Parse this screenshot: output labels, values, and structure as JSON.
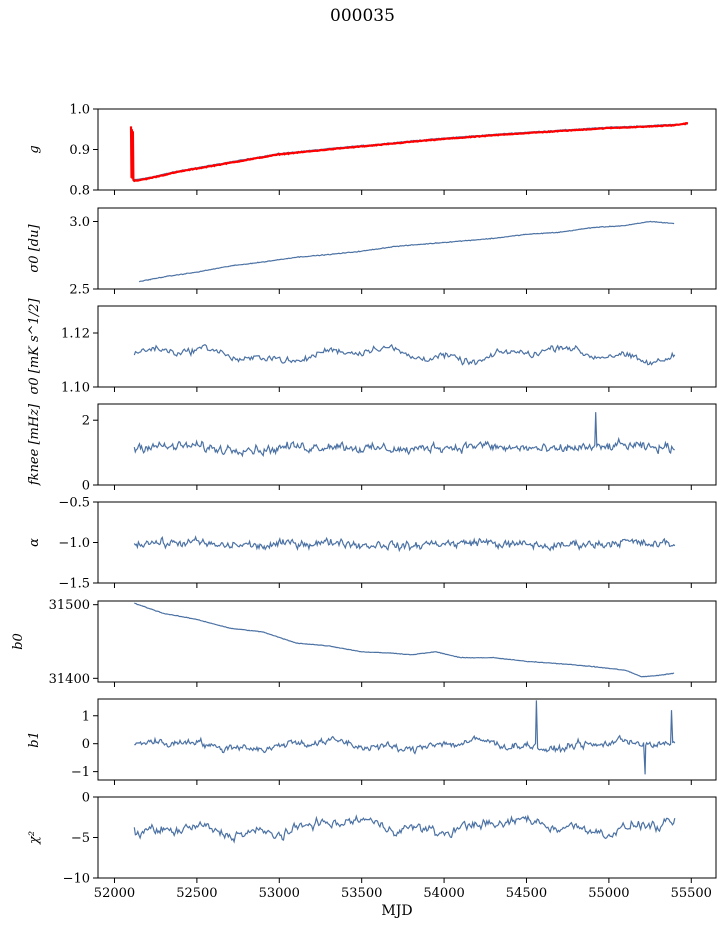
{
  "figure": {
    "title": "000035",
    "shared_xlabel": "MJD"
  },
  "colors": {
    "series": "#4c72a4",
    "overlay": "#ff0000",
    "axis": "#000000"
  },
  "chart_data": [
    {
      "type": "line",
      "ylabel": "g",
      "ylim": [
        0.8,
        1.0
      ],
      "yticks": [
        0.8,
        0.9,
        1.0
      ],
      "ytick_labels": [
        "0.8",
        "0.9",
        "1.0"
      ],
      "xlim": [
        51900,
        55650
      ],
      "series": [
        {
          "color": "#4c72a4",
          "style": "trend",
          "points": [
            [
              52120,
              0.825
            ],
            [
              52200,
              0.83
            ],
            [
              52400,
              0.848
            ],
            [
              52600,
              0.862
            ],
            [
              52800,
              0.876
            ],
            [
              53000,
              0.89
            ],
            [
              53200,
              0.898
            ],
            [
              53400,
              0.906
            ],
            [
              53600,
              0.913
            ],
            [
              53800,
              0.921
            ],
            [
              54000,
              0.928
            ],
            [
              54200,
              0.934
            ],
            [
              54400,
              0.94
            ],
            [
              54600,
              0.945
            ],
            [
              54800,
              0.95
            ],
            [
              55000,
              0.955
            ],
            [
              55200,
              0.958
            ],
            [
              55400,
              0.962
            ],
            [
              55480,
              0.963
            ]
          ],
          "noise": 0.0015
        },
        {
          "color": "#ff0000",
          "style": "trend",
          "points": [
            [
              52100,
              0.957
            ],
            [
              52103,
              0.83
            ],
            [
              52106,
              0.95
            ],
            [
              52109,
              0.828
            ],
            [
              52112,
              0.945
            ],
            [
              52115,
              0.825
            ],
            [
              52120,
              0.822
            ],
            [
              52200,
              0.828
            ],
            [
              52400,
              0.846
            ],
            [
              52600,
              0.86
            ],
            [
              52800,
              0.874
            ],
            [
              53000,
              0.888
            ],
            [
              53200,
              0.896
            ],
            [
              53400,
              0.904
            ],
            [
              53600,
              0.911
            ],
            [
              53800,
              0.919
            ],
            [
              54000,
              0.926
            ],
            [
              54200,
              0.932
            ],
            [
              54400,
              0.938
            ],
            [
              54600,
              0.943
            ],
            [
              54800,
              0.948
            ],
            [
              55000,
              0.953
            ],
            [
              55200,
              0.956
            ],
            [
              55400,
              0.96
            ],
            [
              55480,
              0.965
            ]
          ],
          "noise": 0.0015
        }
      ]
    },
    {
      "type": "line",
      "ylabel": "σ0 [du]",
      "ylim": [
        2.5,
        3.1
      ],
      "yticks": [
        2.5,
        3.0
      ],
      "ytick_labels": [
        "2.5",
        "3.0"
      ],
      "xlim": [
        51900,
        55650
      ],
      "series": [
        {
          "color": "#4c72a4",
          "style": "trend",
          "points": [
            [
              52150,
              2.555
            ],
            [
              52300,
              2.59
            ],
            [
              52500,
              2.625
            ],
            [
              52700,
              2.67
            ],
            [
              52900,
              2.7
            ],
            [
              53100,
              2.735
            ],
            [
              53300,
              2.755
            ],
            [
              53500,
              2.78
            ],
            [
              53700,
              2.815
            ],
            [
              53900,
              2.835
            ],
            [
              54100,
              2.855
            ],
            [
              54300,
              2.875
            ],
            [
              54500,
              2.905
            ],
            [
              54700,
              2.92
            ],
            [
              54900,
              2.955
            ],
            [
              55100,
              2.97
            ],
            [
              55250,
              3.0
            ],
            [
              55400,
              2.985
            ]
          ],
          "noise": 0.004
        }
      ]
    },
    {
      "type": "line",
      "ylabel": "σ0 [mK s^1/2]",
      "ylim": [
        1.1,
        1.13
      ],
      "yticks": [
        1.1,
        1.12
      ],
      "ytick_labels": [
        "1.10",
        "1.12"
      ],
      "xlim": [
        51900,
        55650
      ],
      "series": [
        {
          "color": "#4c72a4",
          "style": "noise",
          "n": 420,
          "x0": 52120,
          "x1": 55400,
          "mean": 1.112,
          "amp": 0.002,
          "wave": 0.002,
          "min": 1.106,
          "max": 1.118
        }
      ]
    },
    {
      "type": "line",
      "ylabel": "fknee [mHz]",
      "ylim": [
        0,
        2.5
      ],
      "yticks": [
        0,
        2
      ],
      "ytick_labels": [
        "0",
        "2"
      ],
      "xlim": [
        51900,
        55650
      ],
      "series": [
        {
          "color": "#4c72a4",
          "style": "noise",
          "n": 520,
          "x0": 52120,
          "x1": 55400,
          "mean": 1.15,
          "amp": 0.22,
          "wave": 0.05,
          "min": 0.7,
          "max": 1.65,
          "spikes": [
            [
              54920,
              2.25
            ]
          ]
        }
      ]
    },
    {
      "type": "line",
      "ylabel": "α",
      "ylim": [
        -1.5,
        -0.5
      ],
      "yticks": [
        -1.5,
        -1.0,
        -0.5
      ],
      "ytick_labels": [
        "−1.5",
        "−1.0",
        "−0.5"
      ],
      "xlim": [
        51900,
        55650
      ],
      "series": [
        {
          "color": "#4c72a4",
          "style": "noise",
          "n": 520,
          "x0": 52120,
          "x1": 55400,
          "mean": -1.02,
          "amp": 0.08,
          "wave": 0.02,
          "min": -1.38,
          "max": -0.82
        }
      ]
    },
    {
      "type": "line",
      "ylabel": "b0",
      "ylim": [
        31395,
        31505
      ],
      "yticks": [
        31400,
        31500
      ],
      "ytick_labels": [
        "31400",
        "31500"
      ],
      "xlim": [
        51900,
        55650
      ],
      "series": [
        {
          "color": "#4c72a4",
          "style": "trend",
          "points": [
            [
              52120,
              31502
            ],
            [
              52300,
              31488
            ],
            [
              52500,
              31480
            ],
            [
              52700,
              31468
            ],
            [
              52900,
              31463
            ],
            [
              53100,
              31448
            ],
            [
              53300,
              31444
            ],
            [
              53500,
              31436
            ],
            [
              53700,
              31434
            ],
            [
              53800,
              31432
            ],
            [
              53950,
              31436
            ],
            [
              54100,
              31428
            ],
            [
              54300,
              31428
            ],
            [
              54500,
              31423
            ],
            [
              54700,
              31420
            ],
            [
              54900,
              31416
            ],
            [
              55100,
              31411
            ],
            [
              55200,
              31402
            ],
            [
              55300,
              31404
            ],
            [
              55400,
              31407
            ]
          ],
          "noise": 0.6
        }
      ]
    },
    {
      "type": "line",
      "ylabel": "b1",
      "ylim": [
        -1.3,
        1.6
      ],
      "yticks": [
        -1,
        0,
        1
      ],
      "ytick_labels": [
        "−1",
        "0",
        "1"
      ],
      "xlim": [
        51900,
        55650
      ],
      "series": [
        {
          "color": "#4c72a4",
          "style": "noise",
          "n": 520,
          "x0": 52120,
          "x1": 55400,
          "mean": -0.05,
          "amp": 0.2,
          "wave": 0.12,
          "min": -1.15,
          "max": 1.2,
          "spikes": [
            [
              54560,
              1.55
            ],
            [
              55220,
              -1.1
            ],
            [
              55380,
              1.2
            ]
          ]
        }
      ]
    },
    {
      "type": "line",
      "ylabel": "χ²",
      "ylim": [
        -10,
        0
      ],
      "yticks": [
        -10,
        -5,
        0
      ],
      "ytick_labels": [
        "−10",
        "−5",
        "0"
      ],
      "xticks": [
        52000,
        52500,
        53000,
        53500,
        54000,
        54500,
        55000,
        55500
      ],
      "xtick_labels": [
        "52000",
        "52500",
        "53000",
        "53500",
        "54000",
        "54500",
        "55000",
        "55500"
      ],
      "xlabel": "MJD",
      "xlim": [
        51900,
        55650
      ],
      "series": [
        {
          "color": "#4c72a4",
          "style": "noise",
          "n": 460,
          "x0": 52120,
          "x1": 55400,
          "mean": -3.6,
          "amp": 0.9,
          "wave": 0.6,
          "min": -8.6,
          "max": -0.7,
          "trendStart": -5.5,
          "trendEnd": -3.3
        }
      ]
    }
  ]
}
